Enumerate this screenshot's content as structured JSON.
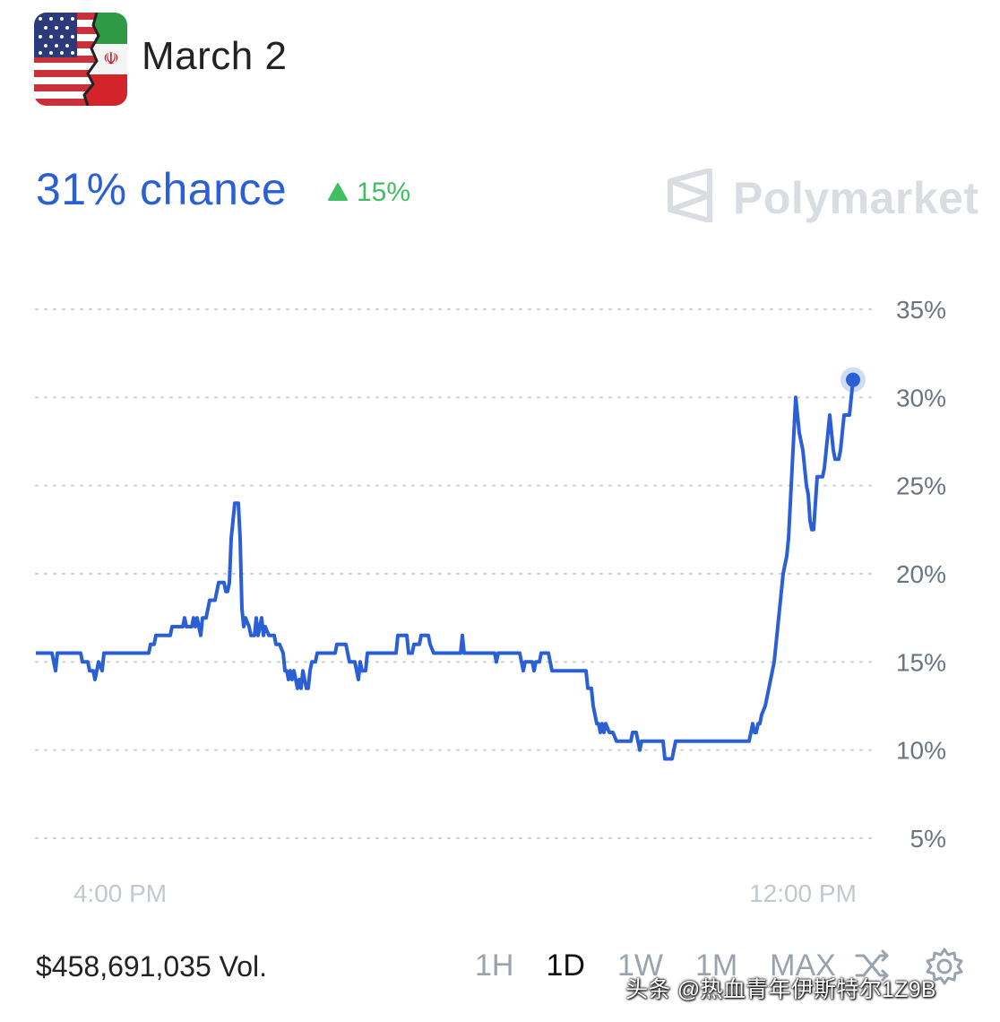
{
  "header": {
    "title": "March 2",
    "avatar_icon": "us-iran-flag-icon"
  },
  "odds": {
    "chance": "31% chance",
    "change": "15%",
    "change_icon": "triangle-up-icon",
    "change_color": "#3fbf5f",
    "accent_color": "#2a5fd6"
  },
  "brand": {
    "name": "Polymarket",
    "icon": "polymarket-logo-icon"
  },
  "chart_data": {
    "type": "line",
    "series": [
      {
        "color": "#2a5fd6",
        "points": [
          [
            0,
            15.5
          ],
          [
            18,
            15.5
          ],
          [
            20,
            15
          ],
          [
            22,
            14.5
          ],
          [
            24,
            15.5
          ],
          [
            50,
            15.5
          ],
          [
            52,
            15
          ],
          [
            58,
            15
          ],
          [
            60,
            14.5
          ],
          [
            64,
            14.5
          ],
          [
            66,
            14
          ],
          [
            68,
            14.5
          ],
          [
            70,
            15
          ],
          [
            74,
            14.5
          ],
          [
            76,
            15.5
          ],
          [
            80,
            15.5
          ],
          [
            126,
            15.5
          ],
          [
            128,
            16
          ],
          [
            132,
            16
          ],
          [
            134,
            16.5
          ],
          [
            150,
            16.5
          ],
          [
            152,
            17
          ],
          [
            164,
            17
          ],
          [
            166,
            17.5
          ],
          [
            168,
            17
          ],
          [
            174,
            17
          ],
          [
            176,
            17.5
          ],
          [
            178,
            17
          ],
          [
            180,
            17.5
          ],
          [
            184,
            16.5
          ],
          [
            186,
            17.5
          ],
          [
            190,
            17.5
          ],
          [
            192,
            18
          ],
          [
            194,
            18.5
          ],
          [
            200,
            18.5
          ],
          [
            202,
            19
          ],
          [
            204,
            19.5
          ],
          [
            210,
            19.5
          ],
          [
            212,
            19
          ],
          [
            214,
            19
          ],
          [
            216,
            19.5
          ],
          [
            218,
            22
          ],
          [
            220,
            23
          ],
          [
            222,
            24
          ],
          [
            226,
            24
          ],
          [
            228,
            22
          ],
          [
            230,
            18
          ],
          [
            232,
            17
          ],
          [
            234,
            17.5
          ],
          [
            238,
            17
          ],
          [
            240,
            16.5
          ],
          [
            244,
            16.5
          ],
          [
            246,
            17.5
          ],
          [
            248,
            16.5
          ],
          [
            250,
            17
          ],
          [
            252,
            17.5
          ],
          [
            254,
            16.5
          ],
          [
            256,
            17
          ],
          [
            260,
            16.5
          ],
          [
            262,
            16.5
          ],
          [
            266,
            16.5
          ],
          [
            268,
            16
          ],
          [
            272,
            16
          ],
          [
            276,
            15.5
          ],
          [
            278,
            14.5
          ],
          [
            280,
            14.5
          ],
          [
            282,
            14
          ],
          [
            284,
            14.5
          ],
          [
            286,
            14
          ],
          [
            288,
            14.5
          ],
          [
            290,
            14
          ],
          [
            292,
            13.5
          ],
          [
            294,
            14
          ],
          [
            296,
            13.5
          ],
          [
            298,
            14.5
          ],
          [
            300,
            14
          ],
          [
            302,
            13.5
          ],
          [
            304,
            13.5
          ],
          [
            306,
            14.5
          ],
          [
            308,
            15
          ],
          [
            312,
            15
          ],
          [
            314,
            15.5
          ],
          [
            334,
            15.5
          ],
          [
            336,
            16
          ],
          [
            346,
            16
          ],
          [
            348,
            15.5
          ],
          [
            350,
            15
          ],
          [
            356,
            15
          ],
          [
            358,
            14.5
          ],
          [
            360,
            14
          ],
          [
            362,
            15
          ],
          [
            364,
            14.5
          ],
          [
            368,
            14.5
          ],
          [
            370,
            15.5
          ],
          [
            402,
            15.5
          ],
          [
            404,
            16.5
          ],
          [
            414,
            16.5
          ],
          [
            416,
            15.5
          ],
          [
            420,
            15.5
          ],
          [
            422,
            16
          ],
          [
            428,
            16
          ],
          [
            430,
            16.5
          ],
          [
            438,
            16.5
          ],
          [
            440,
            16
          ],
          [
            444,
            15.5
          ],
          [
            474,
            15.5
          ],
          [
            476,
            16.5
          ],
          [
            478,
            15.5
          ],
          [
            512,
            15.5
          ],
          [
            514,
            15
          ],
          [
            516,
            15.5
          ],
          [
            540,
            15.5
          ],
          [
            542,
            15
          ],
          [
            544,
            14.5
          ],
          [
            546,
            15
          ],
          [
            550,
            15
          ],
          [
            552,
            15
          ],
          [
            554,
            15
          ],
          [
            556,
            14.5
          ],
          [
            558,
            15
          ],
          [
            562,
            15
          ],
          [
            564,
            15.5
          ],
          [
            572,
            15.5
          ],
          [
            574,
            15
          ],
          [
            576,
            14.5
          ],
          [
            582,
            14.5
          ],
          [
            584,
            14.5
          ],
          [
            614,
            14.5
          ],
          [
            616,
            13.5
          ],
          [
            620,
            13.5
          ],
          [
            622,
            12.5
          ],
          [
            624,
            12
          ],
          [
            626,
            11.5
          ],
          [
            628,
            11.5
          ],
          [
            630,
            11
          ],
          [
            632,
            11.5
          ],
          [
            634,
            11
          ],
          [
            636,
            11.5
          ],
          [
            640,
            11
          ],
          [
            642,
            11
          ],
          [
            644,
            11
          ],
          [
            648,
            10.5
          ],
          [
            664,
            10.5
          ],
          [
            666,
            11
          ],
          [
            670,
            11
          ],
          [
            672,
            10.5
          ],
          [
            674,
            10
          ],
          [
            676,
            10.5
          ],
          [
            700,
            10.5
          ],
          [
            702,
            9.5
          ],
          [
            710,
            9.5
          ],
          [
            712,
            10
          ],
          [
            714,
            10.5
          ],
          [
            796,
            10.5
          ],
          [
            798,
            11
          ],
          [
            800,
            11.5
          ],
          [
            802,
            11
          ],
          [
            804,
            11
          ],
          [
            806,
            11.5
          ],
          [
            808,
            11.5
          ],
          [
            810,
            12
          ],
          [
            814,
            12.5
          ],
          [
            816,
            13
          ],
          [
            818,
            13.5
          ],
          [
            820,
            14
          ],
          [
            822,
            14.5
          ],
          [
            824,
            15
          ],
          [
            826,
            16
          ],
          [
            828,
            17
          ],
          [
            830,
            18
          ],
          [
            832,
            19
          ],
          [
            834,
            20
          ],
          [
            836,
            20.5
          ],
          [
            838,
            21
          ],
          [
            840,
            22
          ],
          [
            842,
            24
          ],
          [
            844,
            26
          ],
          [
            846,
            28
          ],
          [
            848,
            30
          ],
          [
            850,
            29
          ],
          [
            852,
            28
          ],
          [
            856,
            27
          ],
          [
            858,
            26
          ],
          [
            860,
            25
          ],
          [
            862,
            24.5
          ],
          [
            864,
            23
          ],
          [
            866,
            22.5
          ],
          [
            868,
            22.5
          ],
          [
            870,
            24
          ],
          [
            872,
            25.5
          ],
          [
            874,
            25.5
          ],
          [
            876,
            25.5
          ],
          [
            878,
            25.5
          ],
          [
            880,
            26
          ],
          [
            882,
            27
          ],
          [
            884,
            28
          ],
          [
            886,
            29
          ],
          [
            888,
            28
          ],
          [
            890,
            27
          ],
          [
            892,
            26.5
          ],
          [
            894,
            26.5
          ],
          [
            896,
            26.5
          ],
          [
            898,
            27
          ],
          [
            900,
            28
          ],
          [
            902,
            29
          ],
          [
            904,
            29
          ],
          [
            908,
            29
          ],
          [
            910,
            30
          ],
          [
            912,
            31
          ]
        ]
      }
    ],
    "x_range": [
      0,
      912
    ],
    "ylim": [
      5,
      35
    ],
    "y_ticks": [
      "35%",
      "30%",
      "25%",
      "20%",
      "15%",
      "10%",
      "5%"
    ],
    "y_tick_values": [
      35,
      30,
      25,
      20,
      15,
      10,
      5
    ],
    "x_tick_labels": [
      "4:00 PM",
      "12:00 PM"
    ],
    "x_tick_values": [
      94,
      856
    ],
    "grid": true,
    "grid_style": "dotted",
    "current_value": 31
  },
  "footer": {
    "volume": "$458,691,035 Vol.",
    "ranges": [
      "1H",
      "1D",
      "1W",
      "1M",
      "MAX"
    ],
    "active_range": "1D",
    "share_icon": "shuffle-icon",
    "settings_icon": "gear-icon"
  },
  "watermark": {
    "text": "头条 @热血青年伊斯特尔1Z9B"
  }
}
